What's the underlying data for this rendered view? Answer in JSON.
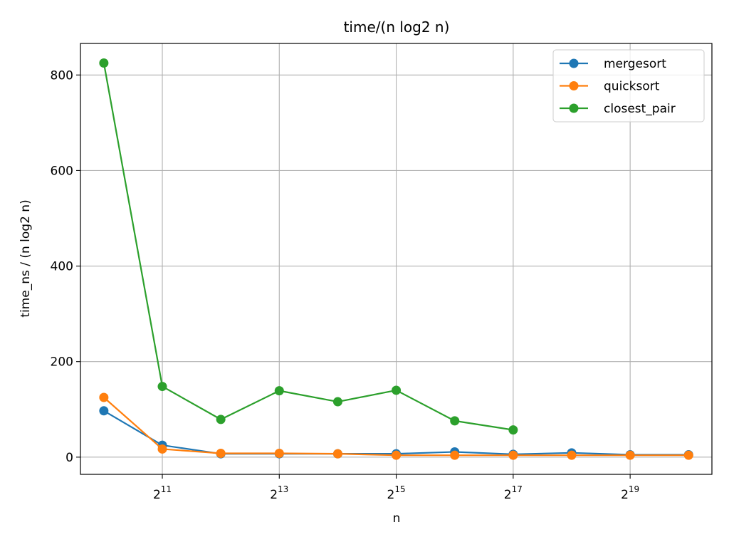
{
  "chart_data": {
    "type": "line",
    "title": "time/(n log2 n)",
    "xlabel": "n",
    "ylabel": "time_ns / (n log2 n)",
    "x_scale": "log2",
    "x": [
      1024,
      2048,
      4096,
      8192,
      16384,
      32768,
      65536,
      131072,
      262144,
      524288,
      1048576
    ],
    "xlim": [
      776,
      1382000
    ],
    "ylim": [
      -36,
      866
    ],
    "x_ticks": [
      {
        "value": 2048,
        "base": "2",
        "exp": "11"
      },
      {
        "value": 8192,
        "base": "2",
        "exp": "13"
      },
      {
        "value": 32768,
        "base": "2",
        "exp": "15"
      },
      {
        "value": 131072,
        "base": "2",
        "exp": "17"
      },
      {
        "value": 524288,
        "base": "2",
        "exp": "19"
      }
    ],
    "y_ticks": [
      0,
      200,
      400,
      600,
      800
    ],
    "grid": true,
    "legend_position": "top-right",
    "series": [
      {
        "name": "mergesort",
        "color": "#1f77b4",
        "values": [
          97,
          25,
          7,
          7,
          7,
          7,
          11,
          6,
          9,
          5,
          5
        ]
      },
      {
        "name": "quicksort",
        "color": "#ff7f0e",
        "values": [
          125,
          17,
          8,
          8,
          7,
          4,
          4,
          4,
          4,
          4,
          4
        ]
      },
      {
        "name": "closest_pair",
        "color": "#2ca02c",
        "values": [
          825,
          148,
          79,
          139,
          116,
          140,
          76,
          57,
          null,
          null,
          null
        ]
      }
    ]
  }
}
